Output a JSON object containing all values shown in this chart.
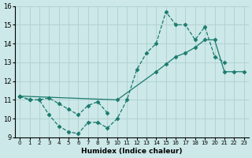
{
  "bg_color": "#cce8e8",
  "grid_color": "#b0d0d0",
  "line_color": "#1a7a6e",
  "xlabel": "Humidex (Indice chaleur)",
  "xlim": [
    -0.5,
    23.5
  ],
  "ylim": [
    9,
    16
  ],
  "yticks": [
    9,
    10,
    11,
    12,
    13,
    14,
    15,
    16
  ],
  "xticks": [
    0,
    1,
    2,
    3,
    4,
    5,
    6,
    7,
    8,
    9,
    10,
    11,
    12,
    13,
    14,
    15,
    16,
    17,
    18,
    19,
    20,
    21,
    22,
    23
  ],
  "series": [
    {
      "x": [
        0,
        1,
        2,
        3,
        4,
        5,
        6,
        7,
        8,
        9,
        10,
        11,
        12,
        13,
        14,
        15,
        16,
        17,
        18,
        19,
        20,
        21
      ],
      "y": [
        11.2,
        11.0,
        11.0,
        10.2,
        9.6,
        9.3,
        9.2,
        9.8,
        9.8,
        9.5,
        10.0,
        11.0,
        12.6,
        13.5,
        14.0,
        15.7,
        15.0,
        15.0,
        14.2,
        14.9,
        13.3,
        13.0
      ],
      "ls": "--",
      "lw": 0.9,
      "marker": "D",
      "ms": 2.5
    },
    {
      "x": [
        0,
        1,
        2,
        3,
        4,
        5,
        6,
        7,
        8,
        9
      ],
      "y": [
        11.2,
        11.0,
        11.0,
        11.1,
        10.8,
        10.5,
        10.2,
        10.7,
        10.9,
        10.3
      ],
      "ls": "--",
      "lw": 0.9,
      "marker": "D",
      "ms": 2.5
    },
    {
      "x": [
        0,
        10,
        14,
        15,
        16,
        17,
        18,
        19,
        20,
        21,
        22,
        23
      ],
      "y": [
        11.2,
        11.0,
        12.5,
        12.9,
        13.3,
        13.5,
        13.8,
        14.2,
        14.2,
        12.5,
        12.5,
        12.5
      ],
      "ls": "-",
      "lw": 0.9,
      "marker": "D",
      "ms": 2.5
    }
  ]
}
